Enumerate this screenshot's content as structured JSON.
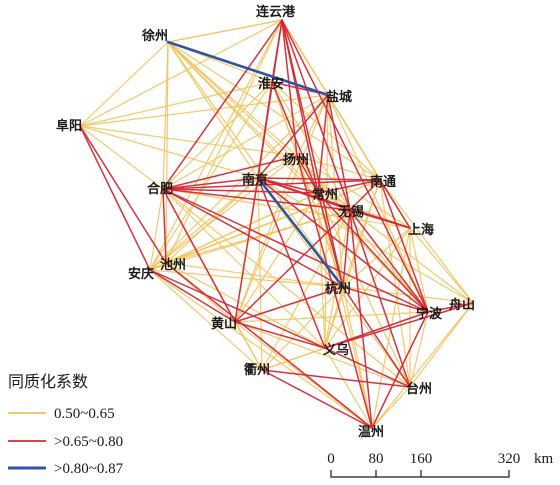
{
  "colors": {
    "low": "#f2c35c",
    "mid": "#d42834",
    "high": "#2f55a6"
  },
  "cities": [
    {
      "id": "lianyungang",
      "name": "连云港"
    },
    {
      "id": "xuzhou",
      "name": "徐州"
    },
    {
      "id": "huaian",
      "name": "淮安"
    },
    {
      "id": "yancheng",
      "name": "盐城"
    },
    {
      "id": "fuyang",
      "name": "阜阳"
    },
    {
      "id": "yangzhou",
      "name": "扬州"
    },
    {
      "id": "hefei",
      "name": "合肥"
    },
    {
      "id": "nanjing",
      "name": "南京"
    },
    {
      "id": "changzhou",
      "name": "常州"
    },
    {
      "id": "nantong",
      "name": "南通"
    },
    {
      "id": "wuxi",
      "name": "无锡"
    },
    {
      "id": "shanghai",
      "name": "上海"
    },
    {
      "id": "chizhou",
      "name": "池州"
    },
    {
      "id": "anqing",
      "name": "安庆"
    },
    {
      "id": "hangzhou",
      "name": "杭州"
    },
    {
      "id": "zhoushan",
      "name": "舟山"
    },
    {
      "id": "ningbo",
      "name": "宁波"
    },
    {
      "id": "huangshan",
      "name": "黄山"
    },
    {
      "id": "yiwu",
      "name": "义乌"
    },
    {
      "id": "quzhou",
      "name": "衢州"
    },
    {
      "id": "taizhou",
      "name": "台州"
    },
    {
      "id": "wenzhou",
      "name": "温州"
    }
  ],
  "legend": {
    "title": "同质化系数",
    "items": [
      {
        "label": "0.50~0.65",
        "level": "low"
      },
      {
        "label": ">0.65~0.80",
        "level": "mid"
      },
      {
        "label": ">0.80~0.87",
        "level": "high"
      }
    ]
  },
  "scale_bar": {
    "ticks": [
      "0",
      "80",
      "160",
      "320"
    ],
    "unit": "km"
  },
  "links_high": [
    [
      "xuzhou",
      "yancheng"
    ],
    [
      "nanjing",
      "hangzhou"
    ]
  ],
  "links_mid": [
    [
      "lianyungang",
      "huaian"
    ],
    [
      "lianyungang",
      "yangzhou"
    ],
    [
      "lianyungang",
      "changzhou"
    ],
    [
      "lianyungang",
      "nanjing"
    ],
    [
      "lianyungang",
      "ningbo"
    ],
    [
      "lianyungang",
      "hefei"
    ],
    [
      "lianyungang",
      "wuxi"
    ],
    [
      "lianyungang",
      "hangzhou"
    ],
    [
      "huaian",
      "yancheng"
    ],
    [
      "huaian",
      "nanjing"
    ],
    [
      "huaian",
      "changzhou"
    ],
    [
      "yancheng",
      "changzhou"
    ],
    [
      "yancheng",
      "nanjing"
    ],
    [
      "yancheng",
      "wuxi"
    ],
    [
      "fuyang",
      "chizhou"
    ],
    [
      "fuyang",
      "anqing"
    ],
    [
      "hefei",
      "nanjing"
    ],
    [
      "hefei",
      "changzhou"
    ],
    [
      "hefei",
      "wuxi"
    ],
    [
      "hefei",
      "nantong"
    ],
    [
      "hefei",
      "ningbo"
    ],
    [
      "hefei",
      "hangzhou"
    ],
    [
      "hefei",
      "huangshan"
    ],
    [
      "hefei",
      "chizhou"
    ],
    [
      "nanjing",
      "nantong"
    ],
    [
      "nanjing",
      "wuxi"
    ],
    [
      "nanjing",
      "shanghai"
    ],
    [
      "nanjing",
      "ningbo"
    ],
    [
      "nanjing",
      "huangshan"
    ],
    [
      "nanjing",
      "yiwu"
    ],
    [
      "nanjing",
      "changzhou"
    ],
    [
      "changzhou",
      "ningbo"
    ],
    [
      "changzhou",
      "hangzhou"
    ],
    [
      "changzhou",
      "nantong"
    ],
    [
      "wuxi",
      "ningbo"
    ],
    [
      "wuxi",
      "hangzhou"
    ],
    [
      "wuxi",
      "shanghai"
    ],
    [
      "wuxi",
      "wenzhou"
    ],
    [
      "wuxi",
      "taizhou"
    ],
    [
      "wuxi",
      "huangshan"
    ],
    [
      "nantong",
      "ningbo"
    ],
    [
      "nantong",
      "wuxi"
    ],
    [
      "nantong",
      "shanghai"
    ],
    [
      "hangzhou",
      "ningbo"
    ],
    [
      "hangzhou",
      "taizhou"
    ],
    [
      "ningbo",
      "zhoushan"
    ],
    [
      "ningbo",
      "yiwu"
    ],
    [
      "ningbo",
      "wenzhou"
    ],
    [
      "anqing",
      "huangshan"
    ],
    [
      "anqing",
      "yiwu"
    ],
    [
      "huangshan",
      "yiwu"
    ],
    [
      "huangshan",
      "hangzhou"
    ],
    [
      "yiwu",
      "taizhou"
    ],
    [
      "yiwu",
      "zhoushan"
    ],
    [
      "quzhou",
      "taizhou"
    ],
    [
      "quzhou",
      "wenzhou"
    ],
    [
      "yangzhou",
      "wenzhou"
    ],
    [
      "chizhou",
      "wenzhou"
    ],
    [
      "yangzhou",
      "changzhou"
    ],
    [
      "hefei",
      "yangzhou"
    ]
  ],
  "links_low": [
    [
      "xuzhou",
      "lianyungang"
    ],
    [
      "xuzhou",
      "huaian"
    ],
    [
      "xuzhou",
      "yangzhou"
    ],
    [
      "xuzhou",
      "nanjing"
    ],
    [
      "xuzhou",
      "hefei"
    ],
    [
      "xuzhou",
      "changzhou"
    ],
    [
      "xuzhou",
      "wuxi"
    ],
    [
      "xuzhou",
      "nantong"
    ],
    [
      "xuzhou",
      "hangzhou"
    ],
    [
      "xuzhou",
      "ningbo"
    ],
    [
      "xuzhou",
      "fuyang"
    ],
    [
      "xuzhou",
      "chizhou"
    ],
    [
      "lianyungang",
      "yancheng"
    ],
    [
      "lianyungang",
      "xuzhou"
    ],
    [
      "lianyungang",
      "fuyang"
    ],
    [
      "lianyungang",
      "nantong"
    ],
    [
      "lianyungang",
      "shanghai"
    ],
    [
      "lianyungang",
      "chizhou"
    ],
    [
      "lianyungang",
      "anqing"
    ],
    [
      "lianyungang",
      "huangshan"
    ],
    [
      "fuyang",
      "huaian"
    ],
    [
      "fuyang",
      "yancheng"
    ],
    [
      "fuyang",
      "hefei"
    ],
    [
      "fuyang",
      "nanjing"
    ],
    [
      "fuyang",
      "yangzhou"
    ],
    [
      "yancheng",
      "hefei"
    ],
    [
      "yancheng",
      "nantong"
    ],
    [
      "yancheng",
      "shanghai"
    ],
    [
      "yancheng",
      "hangzhou"
    ],
    [
      "yancheng",
      "ningbo"
    ],
    [
      "yancheng",
      "yiwu"
    ],
    [
      "yancheng",
      "huangshan"
    ],
    [
      "yancheng",
      "anqing"
    ],
    [
      "yancheng",
      "yangzhou"
    ],
    [
      "huaian",
      "hefei"
    ],
    [
      "huaian",
      "yangzhou"
    ],
    [
      "huaian",
      "wuxi"
    ],
    [
      "huaian",
      "nantong"
    ],
    [
      "huaian",
      "hangzhou"
    ],
    [
      "huaian",
      "anqing"
    ],
    [
      "yangzhou",
      "nanjing"
    ],
    [
      "yangzhou",
      "nantong"
    ],
    [
      "yangzhou",
      "wuxi"
    ],
    [
      "yangzhou",
      "hangzhou"
    ],
    [
      "yangzhou",
      "ningbo"
    ],
    [
      "yangzhou",
      "shanghai"
    ],
    [
      "yangzhou",
      "anqing"
    ],
    [
      "yangzhou",
      "huangshan"
    ],
    [
      "hefei",
      "anqing"
    ],
    [
      "hefei",
      "shanghai"
    ],
    [
      "hefei",
      "yiwu"
    ],
    [
      "hefei",
      "quzhou"
    ],
    [
      "hefei",
      "taizhou"
    ],
    [
      "nanjing",
      "chizhou"
    ],
    [
      "nanjing",
      "anqing"
    ],
    [
      "nanjing",
      "taizhou"
    ],
    [
      "nanjing",
      "quzhou"
    ],
    [
      "nanjing",
      "zhoushan"
    ],
    [
      "changzhou",
      "shanghai"
    ],
    [
      "changzhou",
      "chizhou"
    ],
    [
      "changzhou",
      "huangshan"
    ],
    [
      "changzhou",
      "yiwu"
    ],
    [
      "changzhou",
      "taizhou"
    ],
    [
      "changzhou",
      "wenzhou"
    ],
    [
      "changzhou",
      "anqing"
    ],
    [
      "nantong",
      "hangzhou"
    ],
    [
      "nantong",
      "zhoushan"
    ],
    [
      "nantong",
      "taizhou"
    ],
    [
      "nantong",
      "yiwu"
    ],
    [
      "nantong",
      "chizhou"
    ],
    [
      "nantong",
      "anqing"
    ],
    [
      "wuxi",
      "chizhou"
    ],
    [
      "wuxi",
      "anqing"
    ],
    [
      "wuxi",
      "yiwu"
    ],
    [
      "wuxi",
      "zhoushan"
    ],
    [
      "wuxi",
      "quzhou"
    ],
    [
      "shanghai",
      "hangzhou"
    ],
    [
      "shanghai",
      "ningbo"
    ],
    [
      "shanghai",
      "zhoushan"
    ],
    [
      "shanghai",
      "taizhou"
    ],
    [
      "shanghai",
      "wenzhou"
    ],
    [
      "shanghai",
      "yiwu"
    ],
    [
      "chizhou",
      "anqing"
    ],
    [
      "chizhou",
      "huangshan"
    ],
    [
      "chizhou",
      "hangzhou"
    ],
    [
      "chizhou",
      "yiwu"
    ],
    [
      "anqing",
      "quzhou"
    ],
    [
      "anqing",
      "hangzhou"
    ],
    [
      "anqing",
      "wenzhou"
    ],
    [
      "hangzhou",
      "zhoushan"
    ],
    [
      "hangzhou",
      "yiwu"
    ],
    [
      "hangzhou",
      "wenzhou"
    ],
    [
      "hangzhou",
      "quzhou"
    ],
    [
      "ningbo",
      "taizhou"
    ],
    [
      "ningbo",
      "huangshan"
    ],
    [
      "ningbo",
      "quzhou"
    ],
    [
      "huangshan",
      "quzhou"
    ],
    [
      "huangshan",
      "taizhou"
    ],
    [
      "huangshan",
      "wenzhou"
    ],
    [
      "yiwu",
      "wenzhou"
    ],
    [
      "yiwu",
      "quzhou"
    ],
    [
      "taizhou",
      "wenzhou"
    ],
    [
      "taizhou",
      "zhoushan"
    ],
    [
      "zhoushan",
      "wenzhou"
    ]
  ]
}
